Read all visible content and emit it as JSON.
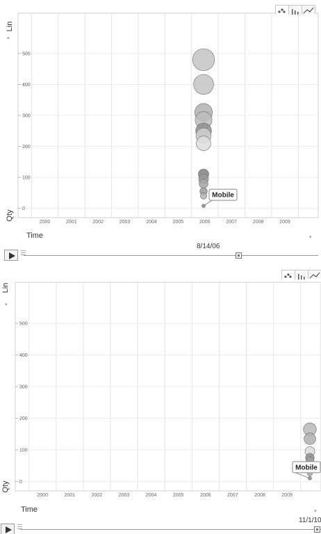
{
  "chart_data": [
    {
      "type": "scatter",
      "title": "",
      "xlabel": "Time",
      "ylabel": "Qty",
      "y_scale_label": "Lin",
      "x_ticks": [
        "2000",
        "2001",
        "2002",
        "2003",
        "2004",
        "2005",
        "2006",
        "2007",
        "2008",
        "2009"
      ],
      "y_ticks": [
        "0",
        "100",
        "200",
        "300",
        "400",
        "500"
      ],
      "xlim": [
        "1999-07-01",
        "2010-10-01"
      ],
      "ylim": [
        -30,
        630
      ],
      "current_time": "8/14/06",
      "slider_position": 0.73,
      "tooltip": "Mobile",
      "tooltip_point_index": 12,
      "series": [
        {
          "points": [
            {
              "x": "2006-08-14",
              "y": 480,
              "size": 480,
              "shade": "#c4c4c4"
            },
            {
              "x": "2006-08-14",
              "y": 400,
              "size": 400,
              "shade": "#c4c4c4"
            },
            {
              "x": "2006-08-14",
              "y": 310,
              "size": 310,
              "shade": "#b0b0b0"
            },
            {
              "x": "2006-08-14",
              "y": 285,
              "size": 285,
              "shade": "#bdbdbd"
            },
            {
              "x": "2006-08-14",
              "y": 250,
              "size": 250,
              "shade": "#8f8f8f"
            },
            {
              "x": "2006-08-14",
              "y": 235,
              "size": 230,
              "shade": "#cfcfcf"
            },
            {
              "x": "2006-08-14",
              "y": 210,
              "size": 210,
              "shade": "#dedede"
            },
            {
              "x": "2006-08-14",
              "y": 110,
              "size": 110,
              "shade": "#808080"
            },
            {
              "x": "2006-08-14",
              "y": 95,
              "size": 95,
              "shade": "#9a9a9a"
            },
            {
              "x": "2006-08-14",
              "y": 80,
              "size": 80,
              "shade": "#a6a6a6"
            },
            {
              "x": "2006-08-14",
              "y": 55,
              "size": 55,
              "shade": "#9a9a9a"
            },
            {
              "x": "2006-08-14",
              "y": 40,
              "size": 40,
              "shade": "#b5b5b5"
            },
            {
              "x": "2006-08-14",
              "y": 8,
              "size": 8,
              "shade": "#8a8a8a"
            }
          ]
        }
      ]
    },
    {
      "type": "scatter",
      "title": "",
      "xlabel": "Time",
      "ylabel": "Qty",
      "y_scale_label": "Lin",
      "x_ticks": [
        "2000",
        "2001",
        "2002",
        "2003",
        "2004",
        "2005",
        "2006",
        "2007",
        "2008",
        "2009"
      ],
      "y_ticks": [
        "0",
        "100",
        "200",
        "300",
        "400",
        "500"
      ],
      "xlim": [
        "1999-07-01",
        "2010-10-01"
      ],
      "ylim": [
        -30,
        630
      ],
      "current_time": "11/1/10",
      "slider_position": 0.995,
      "tooltip": "Mobile",
      "tooltip_point_index": 8,
      "series": [
        {
          "points": [
            {
              "x": "2010-11-01",
              "y": 165,
              "size": 165,
              "shade": "#b8b8b8"
            },
            {
              "x": "2010-11-01",
              "y": 135,
              "size": 135,
              "shade": "#b0b0b0"
            },
            {
              "x": "2010-11-01",
              "y": 95,
              "size": 95,
              "shade": "#dadada"
            },
            {
              "x": "2010-11-01",
              "y": 75,
              "size": 75,
              "shade": "#8f8f8f"
            },
            {
              "x": "2010-11-01",
              "y": 65,
              "size": 65,
              "shade": "#a0a0a0"
            },
            {
              "x": "2010-11-01",
              "y": 50,
              "size": 50,
              "shade": "#bdbdbd"
            },
            {
              "x": "2010-11-01",
              "y": 40,
              "size": 40,
              "shade": "#9a9a9a"
            },
            {
              "x": "2010-11-01",
              "y": 25,
              "size": 25,
              "shade": "#aaaaaa"
            },
            {
              "x": "2010-11-01",
              "y": 10,
              "size": 10,
              "shade": "#8a8a8a"
            }
          ]
        }
      ]
    }
  ],
  "ui": {
    "time_dropdown_label": "Time",
    "y_scale_menu_arrow": "▾",
    "dropdown_arrow": "▾",
    "tabs": [
      "bubble-chart",
      "bar-chart",
      "line-chart"
    ],
    "active_tab": "bubble-chart"
  }
}
